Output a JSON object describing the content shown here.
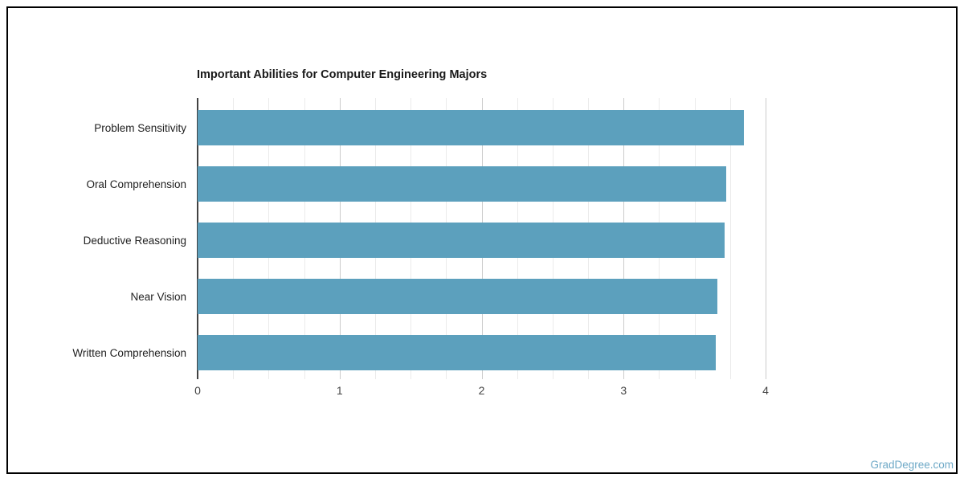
{
  "page": {
    "background": "#ffffff",
    "border_color": "#000000"
  },
  "watermark": {
    "text": "GradDegree.com",
    "color": "#6ea9c7"
  },
  "chart_data": {
    "type": "bar",
    "orientation": "horizontal",
    "title": "Important Abilities for Computer Engineering Majors",
    "categories": [
      "Problem Sensitivity",
      "Oral Comprehension",
      "Deductive Reasoning",
      "Near Vision",
      "Written Comprehension"
    ],
    "values": [
      3.85,
      3.72,
      3.71,
      3.66,
      3.65
    ],
    "xlabel": "",
    "ylabel": "",
    "xlim": [
      0,
      4
    ],
    "x_ticks": [
      0,
      1,
      2,
      3,
      4
    ],
    "x_tick_labels": [
      "0",
      "1",
      "2",
      "3",
      "4"
    ],
    "minor_tick_step": 0.25,
    "grid": true,
    "legend": "none",
    "bar_color": "#5ca0bd",
    "axis_line_color": "#424242",
    "major_gridline_color": "#cccccc",
    "minor_gridline_color": "#ebebeb",
    "title_color": "#1a1a1a",
    "category_label_color": "#222222",
    "tick_label_color": "#444444"
  }
}
